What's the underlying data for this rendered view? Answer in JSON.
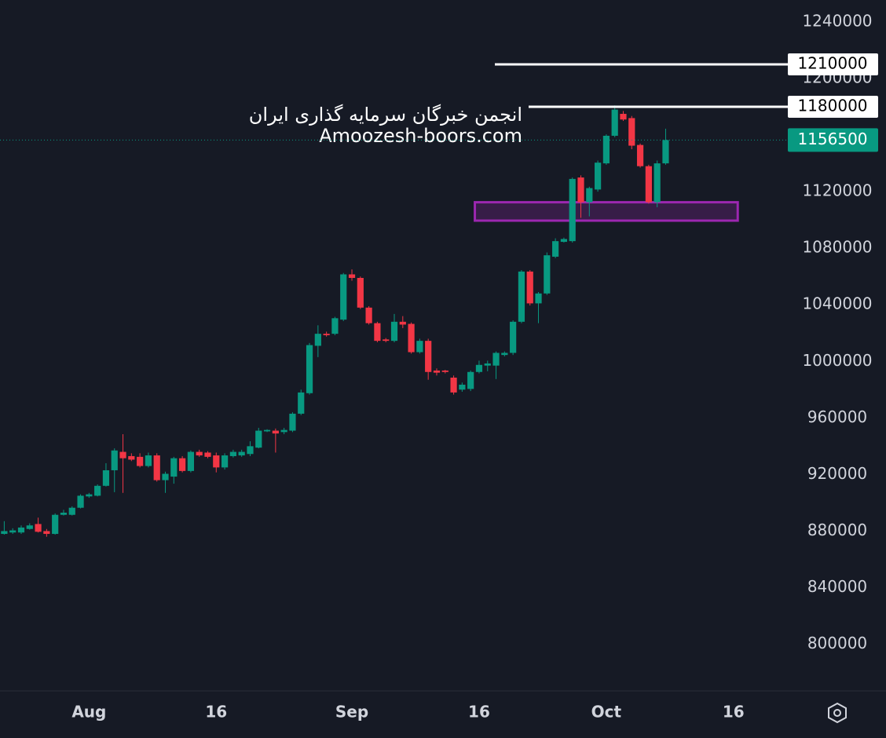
{
  "chart_data": {
    "type": "candlestick",
    "annotations": [
      "انجمن خبرگان سرمایه گذاری ایران",
      "Amoozesh-boors.com"
    ],
    "categories": [
      null,
      null,
      null,
      null,
      null,
      null,
      null,
      null,
      null,
      null,
      "Aug",
      null,
      null,
      null,
      null,
      null,
      null,
      null,
      null,
      null,
      null,
      null,
      null,
      null,
      null,
      "16",
      null,
      null,
      null,
      null,
      null,
      null,
      null,
      null,
      null,
      null,
      null,
      null,
      null,
      null,
      null,
      "Sep",
      null,
      null,
      null,
      null,
      null,
      null,
      null,
      null,
      null,
      null,
      null,
      null,
      null,
      null,
      "16",
      null,
      null,
      null,
      null,
      null,
      null,
      null,
      null,
      null,
      null,
      null,
      null,
      null,
      null,
      "Oct",
      null,
      null,
      null,
      null,
      null,
      null,
      null,
      null,
      null,
      null,
      null,
      null,
      null,
      null,
      "16",
      null,
      null,
      null,
      null,
      null,
      null
    ],
    "open": [
      878000,
      879000,
      879000,
      881500,
      885000,
      880000,
      878000,
      891500,
      891500,
      896500,
      904500,
      905000,
      912000,
      923000,
      936000,
      933000,
      932500,
      926000,
      933500,
      916000,
      918500,
      931500,
      922500,
      936000,
      935500,
      933500,
      925000,
      933000,
      933500,
      934500,
      939000,
      950500,
      951000,
      950000,
      951000,
      963000,
      977500,
      1011000,
      1019500,
      1019500,
      1029500,
      1061500,
      1059000,
      1038000,
      1027000,
      1015500,
      1014500,
      1028000,
      1026500,
      1006500,
      1014500,
      993500,
      993500,
      988500,
      980000,
      980500,
      992500,
      997000,
      997000,
      1004500,
      1006000,
      1028000,
      1063500,
      1041000,
      1048000,
      1074000,
      1084500,
      1085000,
      1130000,
      1112500,
      1121500,
      1140000,
      1159500,
      1175000,
      1172000,
      1153000,
      1138000,
      1112500,
      1140000,
      null,
      null,
      null,
      null,
      null,
      null,
      null,
      null,
      null,
      null,
      null,
      null,
      null,
      null
    ],
    "high": [
      887000,
      882000,
      884000,
      885500,
      889500,
      881500,
      892500,
      895000,
      897500,
      906000,
      907000,
      913000,
      928000,
      938500,
      948500,
      935000,
      935000,
      935500,
      935000,
      922000,
      932500,
      933000,
      937000,
      937500,
      936500,
      935500,
      935000,
      937500,
      937500,
      943500,
      953000,
      952000,
      952500,
      953000,
      964000,
      980000,
      1013000,
      1025500,
      1021000,
      1031500,
      1062500,
      1065000,
      1060000,
      1039000,
      1028000,
      1016500,
      1033500,
      1032000,
      1027500,
      1016000,
      1016000,
      995000,
      994000,
      990000,
      985000,
      993500,
      1000500,
      1000500,
      1007000,
      1007000,
      1029000,
      1064500,
      1064500,
      1049000,
      1077000,
      1087000,
      1087500,
      1130000,
      1131500,
      1123500,
      1142000,
      1160500,
      1181000,
      1177000,
      1173500,
      1154000,
      1139000,
      1142000,
      1164500,
      null,
      null,
      null,
      null,
      null,
      null,
      null,
      null,
      null,
      null,
      null,
      null,
      null,
      null
    ],
    "low": [
      877500,
      878000,
      878000,
      881000,
      879000,
      876000,
      877500,
      891000,
      891000,
      896000,
      903500,
      904500,
      911500,
      907500,
      907000,
      929500,
      925000,
      925000,
      915000,
      907000,
      913500,
      921500,
      921500,
      932500,
      931500,
      921500,
      923500,
      932000,
      932500,
      933000,
      938500,
      950000,
      935500,
      948500,
      950000,
      962000,
      976500,
      1003000,
      1017500,
      1018500,
      1028500,
      1057000,
      1037000,
      1026000,
      1013500,
      1013500,
      1013500,
      1023500,
      1005500,
      1005500,
      987000,
      990000,
      991500,
      976500,
      978500,
      979000,
      991500,
      993000,
      987500,
      1003500,
      1004500,
      1027000,
      1039500,
      1027000,
      1047000,
      1073000,
      1084000,
      1084000,
      1101500,
      1102500,
      1120000,
      1139000,
      1158500,
      1170000,
      1150000,
      1137000,
      1111500,
      1109000,
      1139000,
      null,
      null,
      null,
      null,
      null,
      null,
      null,
      null,
      null,
      null,
      null,
      null,
      null,
      null
    ],
    "close": [
      880000,
      880500,
      882500,
      884000,
      879500,
      878000,
      891500,
      893000,
      896500,
      905000,
      906000,
      912000,
      923000,
      937000,
      931500,
      930500,
      926000,
      933500,
      916000,
      920500,
      931500,
      922500,
      936000,
      933500,
      932500,
      925000,
      933500,
      936000,
      936000,
      940000,
      951000,
      951500,
      949000,
      951500,
      963000,
      978000,
      1011500,
      1019500,
      1018500,
      1030500,
      1061500,
      1059000,
      1038000,
      1027000,
      1014500,
      1014500,
      1028000,
      1026000,
      1006500,
      1014500,
      992500,
      992000,
      992500,
      978000,
      983500,
      992500,
      997500,
      998500,
      1006000,
      1006000,
      1028000,
      1063500,
      1041000,
      1048000,
      1075000,
      1085000,
      1086500,
      1129000,
      1112500,
      1122500,
      1140500,
      1159500,
      1178000,
      1171000,
      1152500,
      1138000,
      1112500,
      1140000,
      1156500,
      null,
      null,
      null,
      null,
      null,
      null,
      null,
      null,
      null,
      null,
      null,
      null,
      null,
      null
    ],
    "up_color": "#089981",
    "down_color": "#f23645",
    "levels": [
      1210000,
      1180000
    ],
    "zone": [
      1099500,
      1112500
    ],
    "zone_color": "#9c27b0",
    "ylim": [
      767000,
      1255500
    ],
    "yticks": [
      800000,
      840000,
      880000,
      920000,
      960000,
      1000000,
      1040000,
      1080000,
      1120000,
      1200000,
      1240000
    ]
  }
}
